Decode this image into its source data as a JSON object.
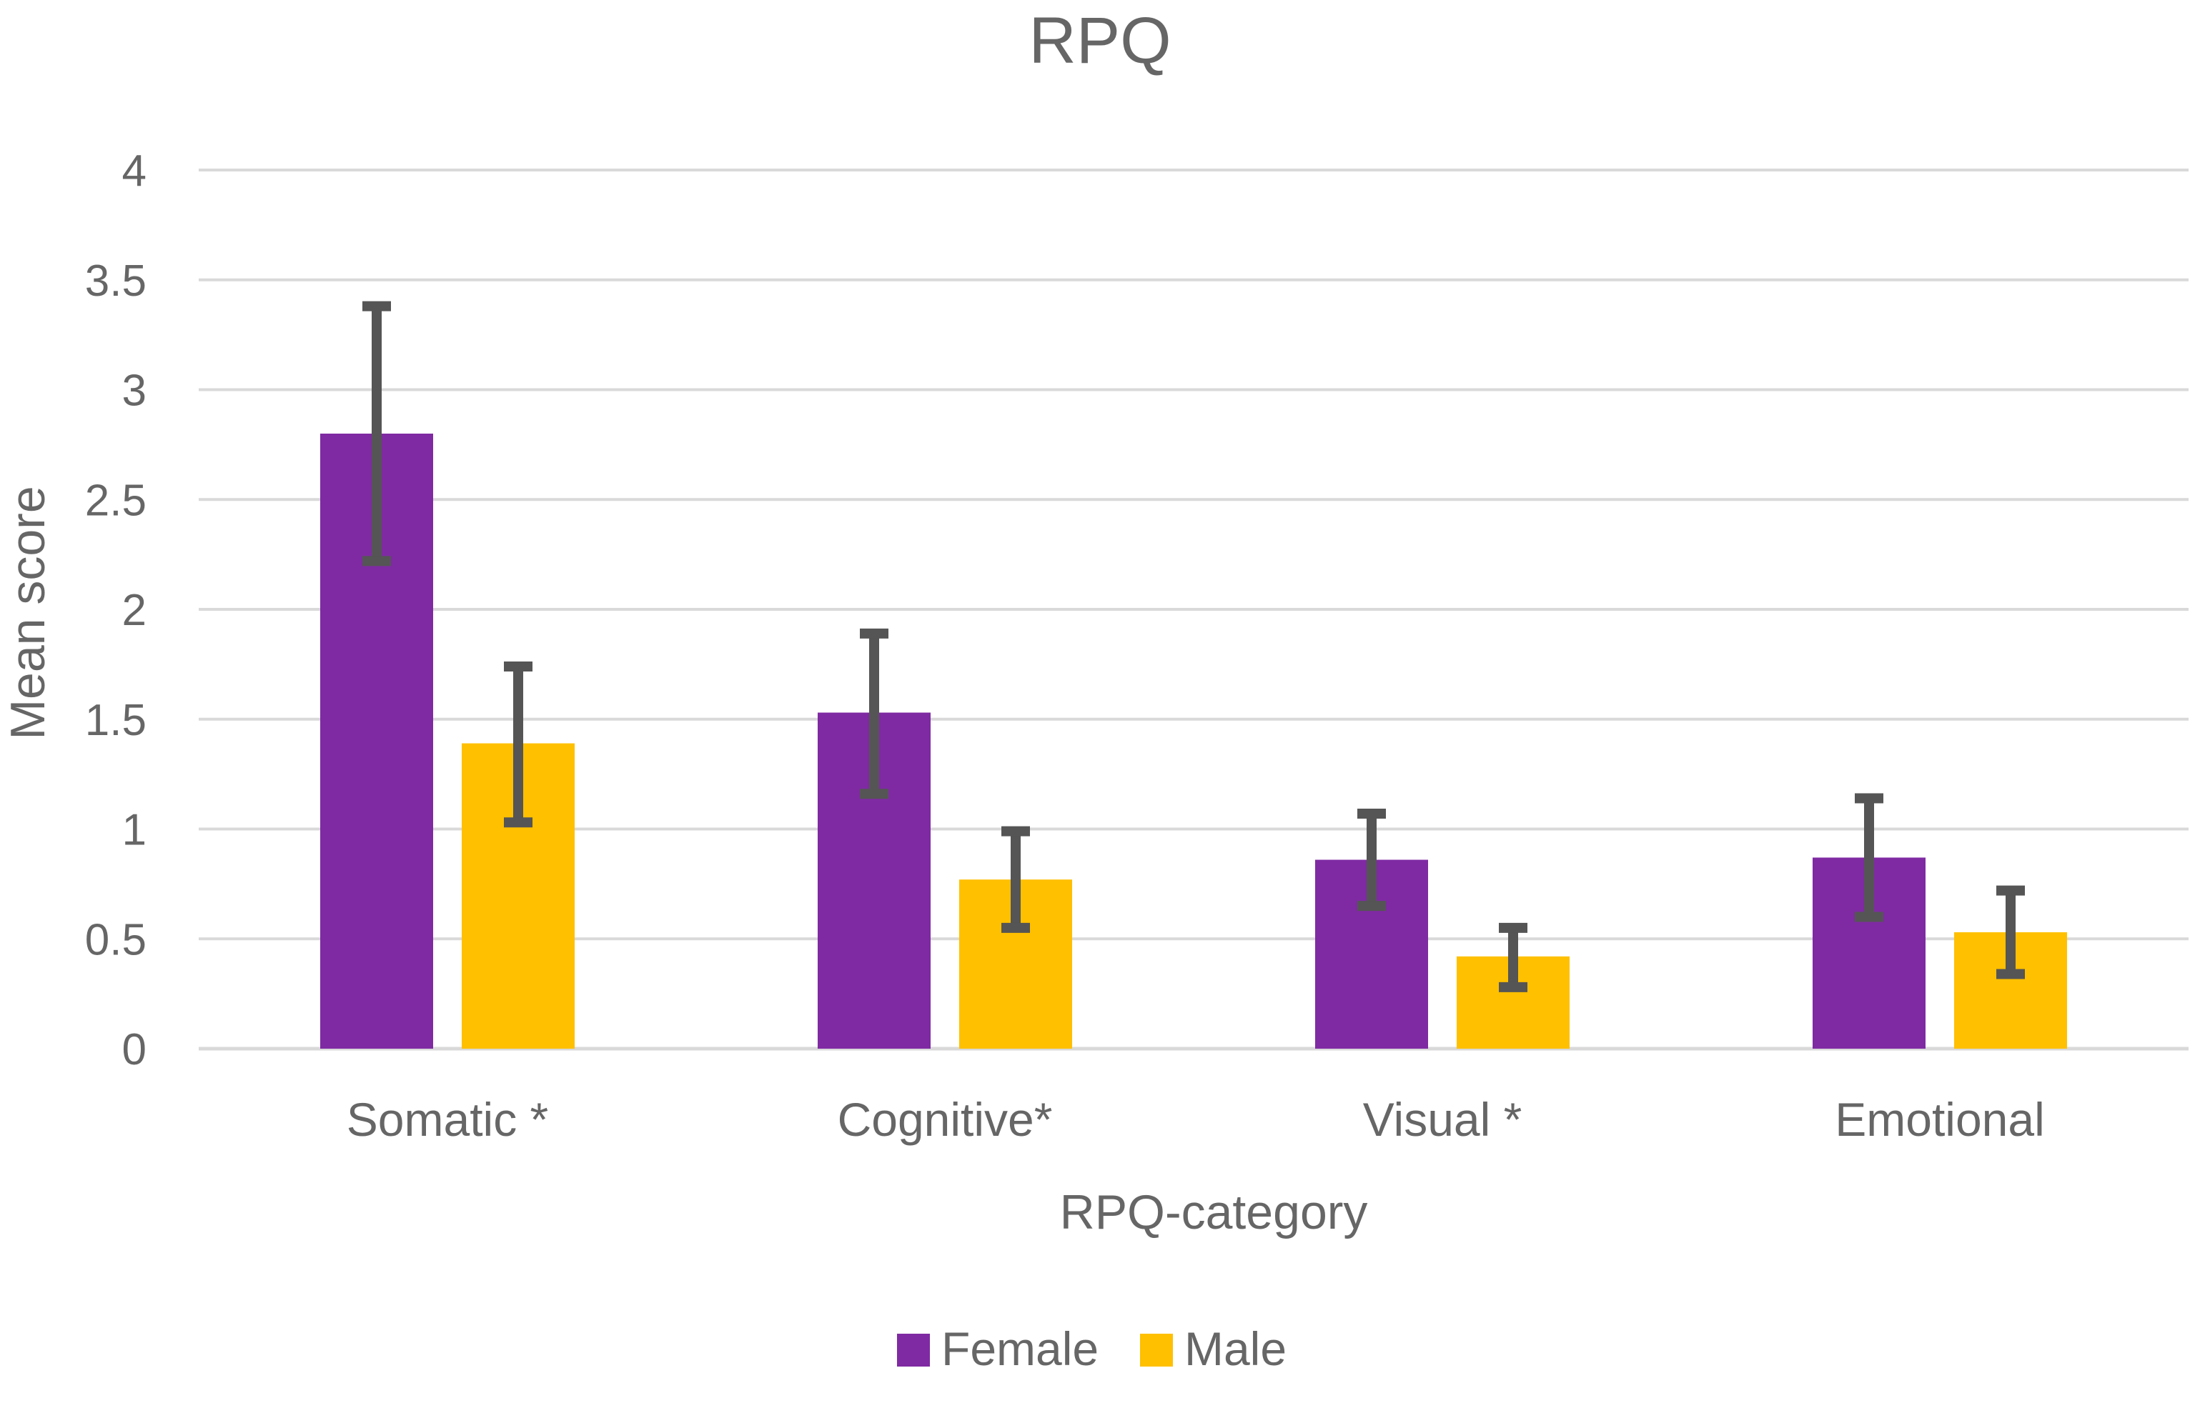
{
  "chart_data": {
    "type": "bar",
    "title": "RPQ",
    "xlabel": "RPQ-category",
    "ylabel": "Mean score",
    "ylim": [
      0,
      4
    ],
    "yticks": [
      0,
      0.5,
      1,
      1.5,
      2,
      2.5,
      3,
      3.5,
      4
    ],
    "ytick_labels": [
      "0",
      "0.5",
      "1",
      "1.5",
      "2",
      "2.5",
      "3",
      "3.5",
      "4"
    ],
    "categories": [
      "Somatic *",
      "Cognitive*",
      "Visual *",
      "Emotional"
    ],
    "grid": true,
    "legend_position": "bottom",
    "series": [
      {
        "name": "Female",
        "color": "#7f2aa3",
        "values": [
          2.8,
          1.53,
          0.86,
          0.87
        ],
        "err_low": [
          2.22,
          1.16,
          0.65,
          0.6
        ],
        "err_high": [
          3.38,
          1.89,
          1.07,
          1.14
        ]
      },
      {
        "name": "Male",
        "color": "#ffc000",
        "values": [
          1.39,
          0.77,
          0.42,
          0.53
        ],
        "err_low": [
          1.03,
          0.55,
          0.28,
          0.34
        ],
        "err_high": [
          1.74,
          0.99,
          0.55,
          0.72
        ]
      }
    ],
    "error_bar_color": "#555555",
    "grid_color": "#d9d9d9"
  }
}
